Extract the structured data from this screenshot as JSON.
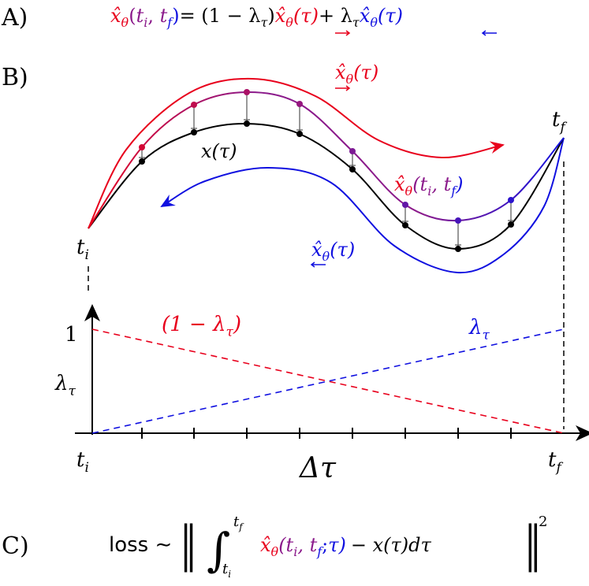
{
  "panel_a": {
    "label": "A)",
    "equation": [
      "x̂",
      "θ",
      "(",
      "t",
      "i",
      ", ",
      "t",
      "f",
      ")",
      "= (1 − λ",
      "τ",
      ")",
      "x̂",
      "θ",
      "(τ)",
      "+ λ",
      "τ",
      "x̂",
      "θ",
      "(τ)"
    ]
  },
  "panel_b": {
    "label": "B)",
    "forward_label": [
      "x̂",
      "θ",
      "(τ)"
    ],
    "backward_label": [
      "x̂",
      "θ",
      "(τ)"
    ],
    "true_label": "x(τ)",
    "interp_label": [
      "x̂",
      "θ",
      "(t",
      "i",
      ", t",
      "f",
      ")"
    ],
    "t_start": [
      "t",
      "i"
    ],
    "t_end": [
      "t",
      "f"
    ]
  },
  "weights": {
    "one": "1",
    "y_label": [
      "λ",
      "τ"
    ],
    "red_label": [
      "(1 − λ",
      "τ",
      ")"
    ],
    "blue_label": [
      "λ",
      "τ"
    ],
    "x_start": [
      "t",
      "i"
    ],
    "x_label": "Δτ",
    "x_end": [
      "t",
      "f"
    ]
  },
  "panel_c": {
    "label": "C)",
    "expression": [
      "loss ∼",
      "‖",
      "∫",
      "t",
      "f",
      "t",
      "i",
      "x̂",
      "θ",
      "(t",
      "i",
      ", t",
      "f",
      ";",
      "τ)",
      "− x(τ)dτ",
      "‖",
      "2"
    ]
  }
}
